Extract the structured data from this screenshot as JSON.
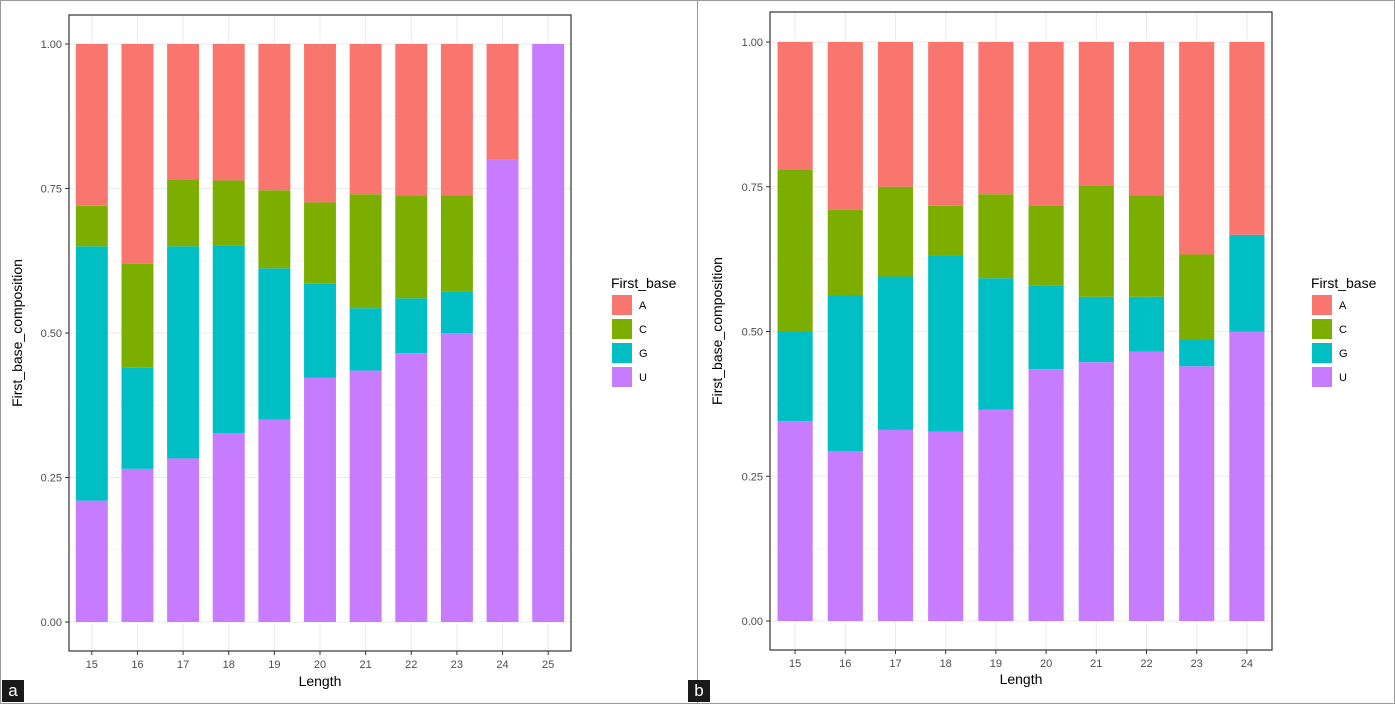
{
  "panels": [
    {
      "label": "a"
    },
    {
      "label": "b"
    }
  ],
  "colors": {
    "A": "#F8766D",
    "C": "#7CAE00",
    "G": "#00BFC4",
    "U": "#C77CFF"
  },
  "chart_data": [
    {
      "type": "bar",
      "stacked": true,
      "panel": "a",
      "xlabel": "Length",
      "ylabel": "First_base_composition",
      "ylim": [
        0,
        1
      ],
      "yticks": [
        "0.00",
        "0.25",
        "0.50",
        "0.75",
        "1.00"
      ],
      "grid": true,
      "legend": {
        "title": "First_base",
        "position": "right"
      },
      "categories": [
        "15",
        "16",
        "17",
        "18",
        "19",
        "20",
        "21",
        "22",
        "23",
        "24",
        "25"
      ],
      "series": [
        {
          "name": "U",
          "values": [
            0.21,
            0.265,
            0.283,
            0.327,
            0.35,
            0.423,
            0.435,
            0.465,
            0.5,
            0.8,
            1.0
          ]
        },
        {
          "name": "G",
          "values": [
            0.44,
            0.175,
            0.367,
            0.325,
            0.262,
            0.163,
            0.108,
            0.095,
            0.072,
            0.0,
            0.0
          ]
        },
        {
          "name": "C",
          "values": [
            0.07,
            0.18,
            0.116,
            0.112,
            0.135,
            0.14,
            0.197,
            0.177,
            0.166,
            0.0,
            0.0
          ]
        },
        {
          "name": "A",
          "values": [
            0.28,
            0.38,
            0.234,
            0.236,
            0.253,
            0.274,
            0.26,
            0.263,
            0.262,
            0.2,
            0.0
          ]
        }
      ]
    },
    {
      "type": "bar",
      "stacked": true,
      "panel": "b",
      "xlabel": "Length",
      "ylabel": "First_base_composition",
      "ylim": [
        0,
        1
      ],
      "yticks": [
        "0.00",
        "0.25",
        "0.50",
        "0.75",
        "1.00"
      ],
      "grid": true,
      "legend": {
        "title": "First_base",
        "position": "right"
      },
      "categories": [
        "15",
        "16",
        "17",
        "18",
        "19",
        "20",
        "21",
        "22",
        "23",
        "24"
      ],
      "series": [
        {
          "name": "U",
          "values": [
            0.345,
            0.293,
            0.33,
            0.327,
            0.365,
            0.435,
            0.447,
            0.465,
            0.44,
            0.5
          ]
        },
        {
          "name": "G",
          "values": [
            0.155,
            0.27,
            0.265,
            0.305,
            0.227,
            0.145,
            0.113,
            0.095,
            0.047,
            0.167
          ]
        },
        {
          "name": "C",
          "values": [
            0.28,
            0.147,
            0.155,
            0.085,
            0.145,
            0.138,
            0.192,
            0.175,
            0.146,
            0.0
          ]
        },
        {
          "name": "A",
          "values": [
            0.22,
            0.29,
            0.25,
            0.283,
            0.263,
            0.282,
            0.248,
            0.265,
            0.367,
            0.333
          ]
        }
      ]
    }
  ]
}
